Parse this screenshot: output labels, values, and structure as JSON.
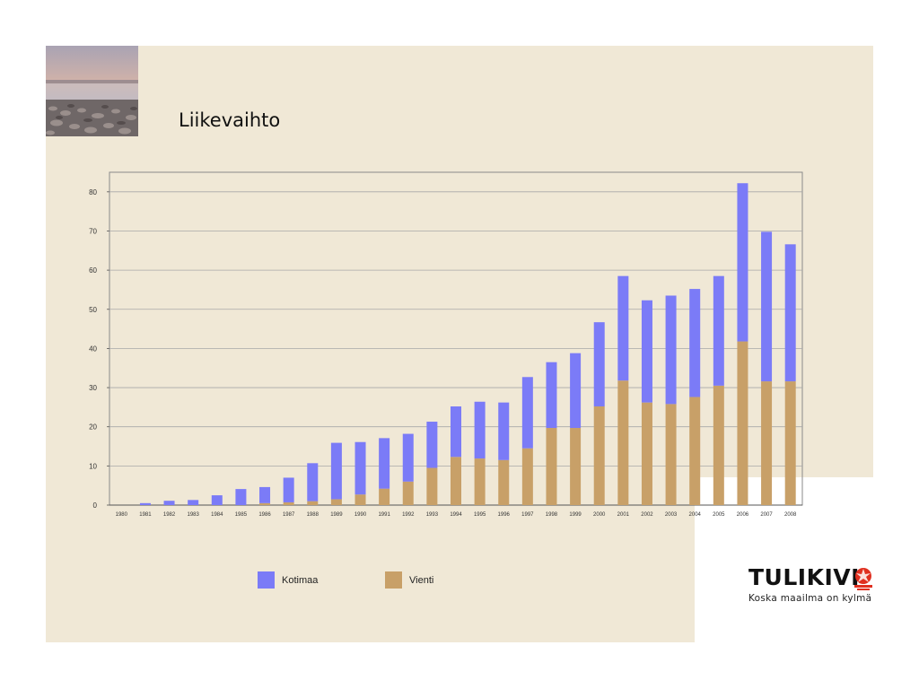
{
  "slide": {
    "title": "Liikevaihto",
    "colors": {
      "background": "#f0e8d6",
      "kotimaa": "#7b7bf7",
      "vienti": "#c8a068"
    }
  },
  "logo": {
    "brand": "TULIKIVI",
    "tagline": "Koska maailma on kylmä"
  },
  "chart_data": {
    "type": "bar",
    "stacked": true,
    "categories": [
      "1980",
      "1981",
      "1982",
      "1983",
      "1984",
      "1985",
      "1986",
      "1987",
      "1988",
      "1989",
      "1990",
      "1991",
      "1992",
      "1993",
      "1994",
      "1995",
      "1996",
      "1997",
      "1998",
      "1999",
      "2000",
      "2001",
      "2002",
      "2003",
      "2004",
      "2005",
      "2006",
      "2007",
      "2008"
    ],
    "series": [
      {
        "name": "Vienti",
        "color": "#c8a068",
        "values": [
          0,
          0,
          0,
          0,
          0,
          0,
          0.5,
          0.7,
          1,
          1.5,
          2.7,
          4.2,
          6,
          9.5,
          12.3,
          11.9,
          11.5,
          14.5,
          19.7,
          19.7,
          25.2,
          31.8,
          26.2,
          25.8,
          27.6,
          30.5,
          41.8,
          31.6,
          31.6
        ]
      },
      {
        "name": "Kotimaa",
        "color": "#7b7bf7",
        "values": [
          0,
          0.5,
          1.1,
          1.3,
          2.5,
          4.1,
          4.1,
          6.3,
          9.7,
          14.4,
          13.4,
          12.9,
          12.2,
          11.8,
          12.9,
          14.5,
          14.7,
          18.2,
          16.8,
          19.1,
          21.5,
          26.7,
          26.1,
          27.7,
          27.6,
          28,
          40.4,
          38.2,
          35
        ]
      }
    ],
    "title": "",
    "xlabel": "",
    "ylabel": "",
    "ylim": [
      0,
      85
    ],
    "yticks": [
      0,
      10,
      20,
      30,
      40,
      50,
      60,
      70,
      80
    ],
    "grid": true,
    "legend_position": "bottom"
  }
}
